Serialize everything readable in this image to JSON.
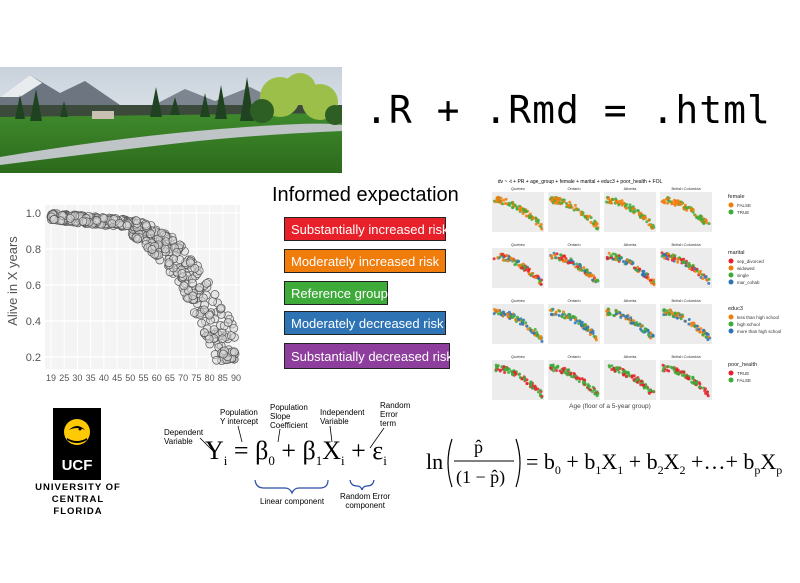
{
  "formula_title": ".R + .Rmd = .html",
  "scatter": {
    "ylabel": "Alive in X years",
    "y_ticks": [
      "1.0",
      "0.8",
      "0.6",
      "0.4",
      "0.2"
    ],
    "x_ticks": [
      "19",
      "25",
      "30",
      "35",
      "40",
      "45",
      "50",
      "55",
      "60",
      "65",
      "70",
      "75",
      "80",
      "85",
      "90"
    ]
  },
  "legend": {
    "title": "Informed expectation",
    "items": [
      {
        "label": "Substantially increased risk",
        "color": "#e8202a"
      },
      {
        "label": "Moderately increased risk",
        "color": "#f07c0c"
      },
      {
        "label": "Reference group",
        "color": "#3eaa3a"
      },
      {
        "label": "Moderately decreased risk",
        "color": "#2e74b5"
      },
      {
        "label": "Substantially decreased risk",
        "color": "#8e3e9c"
      }
    ]
  },
  "facet_chart": {
    "title": "dv ~ -t + PR + age_group + female + marital + educ3 + poor_health + FOL",
    "xlabel": "Age (floor of a 5-year group)",
    "provinces": [
      "Quebec",
      "Ontario",
      "Alberta",
      "British Columbia"
    ],
    "rows": [
      {
        "legend_title": "female",
        "levels": [
          {
            "label": "FALSE",
            "color": "#f07c0c"
          },
          {
            "label": "TRUE",
            "color": "#3eaa3a"
          }
        ]
      },
      {
        "legend_title": "marital",
        "levels": [
          {
            "label": "sep_divorced",
            "color": "#e8202a"
          },
          {
            "label": "widowed",
            "color": "#f07c0c"
          },
          {
            "label": "single",
            "color": "#3eaa3a"
          },
          {
            "label": "mar_cohab",
            "color": "#2e74b5"
          }
        ]
      },
      {
        "legend_title": "educ3",
        "levels": [
          {
            "label": "less than high school",
            "color": "#f07c0c"
          },
          {
            "label": "high school",
            "color": "#3eaa3a"
          },
          {
            "label": "more than high school",
            "color": "#2e74b5"
          }
        ]
      },
      {
        "legend_title": "poor_health",
        "levels": [
          {
            "label": "TRUE",
            "color": "#e8202a"
          },
          {
            "label": "FALSE",
            "color": "#3eaa3a"
          }
        ]
      }
    ]
  },
  "logo": {
    "mark": "UCF",
    "line1": "UNIVERSITY OF",
    "line2": "CENTRAL FLORIDA"
  },
  "regression": {
    "dependent": [
      "Dependent",
      "Variable"
    ],
    "intercept": [
      "Population",
      "Y intercept"
    ],
    "slope": [
      "Population",
      "Slope",
      "Coefficient"
    ],
    "independent": [
      "Independent",
      "Variable"
    ],
    "error": [
      "Random",
      "Error",
      "term"
    ],
    "linear_component": "Linear component",
    "error_component": [
      "Random Error",
      "component"
    ]
  }
}
